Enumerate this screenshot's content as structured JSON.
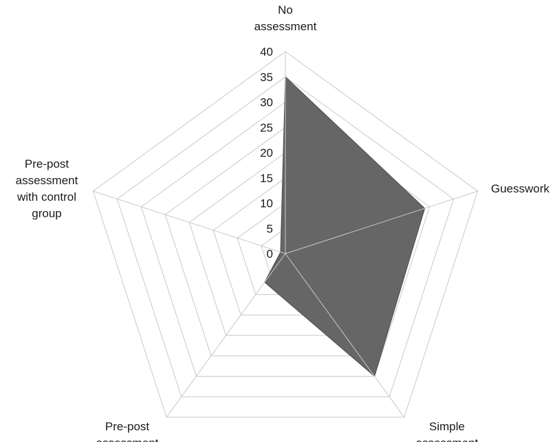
{
  "chart_data": {
    "type": "radar",
    "categories": [
      [
        "No",
        "assessment"
      ],
      [
        "Guesswork"
      ],
      [
        "Simple",
        "assessment"
      ],
      [
        "Pre-post",
        "assessment"
      ],
      [
        "Pre-post",
        "assessment",
        "with control",
        "group"
      ]
    ],
    "ticks": [
      "0",
      "5",
      "10",
      "15",
      "20",
      "25",
      "30",
      "35",
      "40"
    ],
    "ylim": [
      0,
      40
    ],
    "grid": true,
    "series": [
      {
        "values": [
          35,
          29,
          30,
          7,
          1
        ],
        "color": "#666666"
      }
    ]
  }
}
